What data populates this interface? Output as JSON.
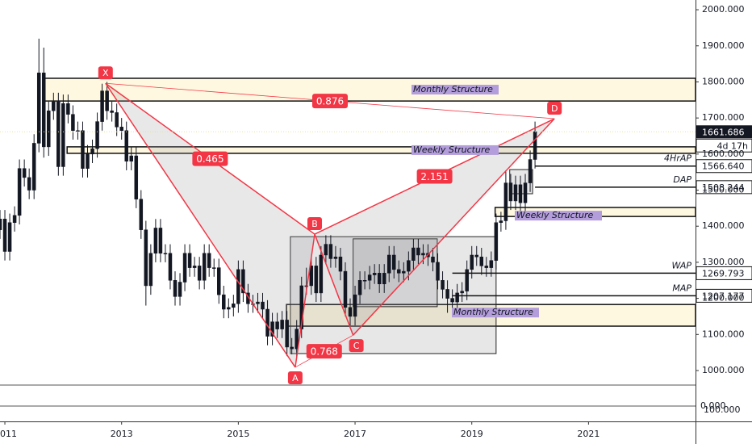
{
  "chart_data": {
    "type": "candlestick",
    "xlim": [
      0,
      143
    ],
    "xticks": [
      {
        "value": 1,
        "label": "011"
      },
      {
        "value": 25,
        "label": "2013"
      },
      {
        "value": 49,
        "label": "2015"
      },
      {
        "value": 73,
        "label": "2017"
      },
      {
        "value": 97,
        "label": "2019"
      },
      {
        "value": 121,
        "label": "2021"
      }
    ],
    "ylim": [
      859,
      2027
    ],
    "yticks": [
      {
        "value": 1000,
        "label": "1000.000"
      },
      {
        "value": 1100,
        "label": "1100.000"
      },
      {
        "value": 1200,
        "label": "1200.000"
      },
      {
        "value": 1300,
        "label": "1300.000"
      },
      {
        "value": 1400,
        "label": "1400.000"
      },
      {
        "value": 1500,
        "label": "1500.000"
      },
      {
        "value": 1600,
        "label": "1600.000"
      },
      {
        "value": 1700,
        "label": "1700.000"
      },
      {
        "value": 1800,
        "label": "1800.000"
      },
      {
        "value": 1900,
        "label": "1900.000"
      },
      {
        "value": 2000,
        "label": "2000.000"
      }
    ],
    "extra_scale_labels": [
      "0.000",
      "100.000"
    ],
    "color": "#131722",
    "x": [
      0,
      1,
      2,
      3,
      4,
      5,
      6,
      7,
      8,
      9,
      10,
      11,
      12,
      13,
      14,
      15,
      16,
      17,
      18,
      19,
      20,
      21,
      22,
      23,
      24,
      25,
      26,
      27,
      28,
      29,
      30,
      31,
      32,
      33,
      34,
      35,
      36,
      37,
      38,
      39,
      40,
      41,
      42,
      43,
      44,
      45,
      46,
      47,
      48,
      49,
      50,
      51,
      52,
      53,
      54,
      55,
      56,
      57,
      58,
      59,
      60,
      61,
      62,
      63,
      64,
      65,
      66,
      67,
      68,
      69,
      70,
      71,
      72,
      73,
      74,
      75,
      76,
      77,
      78,
      79,
      80,
      81,
      82,
      83,
      84,
      85,
      86,
      87,
      88,
      89,
      90,
      91,
      92,
      93,
      94,
      95,
      96,
      97,
      98,
      99,
      100,
      101,
      102,
      103,
      104,
      105,
      106,
      107,
      108,
      109,
      110
    ],
    "open": [
      1390,
      1420,
      1330,
      1410,
      1430,
      1560,
      1535,
      1500,
      1630,
      1825,
      1620,
      1720,
      1745,
      1565,
      1740,
      1710,
      1665,
      1665,
      1560,
      1600,
      1615,
      1690,
      1775,
      1720,
      1715,
      1675,
      1665,
      1580,
      1595,
      1475,
      1390,
      1235,
      1325,
      1395,
      1325,
      1325,
      1250,
      1205,
      1245,
      1325,
      1285,
      1290,
      1250,
      1325,
      1285,
      1285,
      1210,
      1170,
      1175,
      1185,
      1280,
      1215,
      1185,
      1185,
      1190,
      1170,
      1095,
      1135,
      1115,
      1140,
      1065,
      1060,
      1115,
      1235,
      1235,
      1290,
      1215,
      1320,
      1350,
      1310,
      1315,
      1275,
      1175,
      1150,
      1210,
      1250,
      1250,
      1265,
      1270,
      1240,
      1270,
      1320,
      1280,
      1270,
      1275,
      1305,
      1340,
      1320,
      1325,
      1315,
      1300,
      1250,
      1225,
      1200,
      1190,
      1215,
      1220,
      1280,
      1320,
      1315,
      1290,
      1285,
      1305,
      1410,
      1415,
      1520,
      1470,
      1515,
      1465,
      1520,
      1585
    ],
    "high": [
      1445,
      1445,
      1435,
      1455,
      1585,
      1585,
      1560,
      1655,
      1920,
      1895,
      1745,
      1770,
      1770,
      1765,
      1765,
      1735,
      1690,
      1690,
      1625,
      1640,
      1715,
      1795,
      1800,
      1745,
      1740,
      1700,
      1690,
      1620,
      1620,
      1500,
      1415,
      1350,
      1420,
      1420,
      1350,
      1350,
      1275,
      1270,
      1350,
      1350,
      1315,
      1315,
      1350,
      1350,
      1310,
      1310,
      1235,
      1200,
      1210,
      1305,
      1305,
      1240,
      1210,
      1215,
      1215,
      1195,
      1160,
      1160,
      1165,
      1165,
      1090,
      1140,
      1260,
      1285,
      1315,
      1315,
      1345,
      1375,
      1375,
      1345,
      1340,
      1300,
      1200,
      1235,
      1275,
      1275,
      1290,
      1295,
      1295,
      1295,
      1345,
      1345,
      1305,
      1300,
      1330,
      1365,
      1365,
      1350,
      1350,
      1340,
      1325,
      1275,
      1250,
      1225,
      1240,
      1245,
      1305,
      1345,
      1345,
      1340,
      1315,
      1330,
      1435,
      1440,
      1555,
      1545,
      1540,
      1540,
      1545,
      1610,
      1690
    ],
    "low": [
      1365,
      1305,
      1305,
      1385,
      1405,
      1510,
      1475,
      1475,
      1605,
      1590,
      1595,
      1695,
      1540,
      1540,
      1685,
      1640,
      1640,
      1535,
      1535,
      1575,
      1590,
      1665,
      1695,
      1690,
      1650,
      1640,
      1555,
      1555,
      1450,
      1365,
      1180,
      1210,
      1300,
      1300,
      1300,
      1225,
      1180,
      1180,
      1220,
      1260,
      1260,
      1225,
      1225,
      1260,
      1260,
      1185,
      1145,
      1145,
      1150,
      1160,
      1190,
      1160,
      1160,
      1160,
      1145,
      1070,
      1070,
      1090,
      1090,
      1040,
      1045,
      1035,
      1090,
      1210,
      1210,
      1190,
      1190,
      1295,
      1285,
      1285,
      1250,
      1150,
      1125,
      1125,
      1185,
      1225,
      1225,
      1240,
      1215,
      1215,
      1245,
      1255,
      1245,
      1245,
      1250,
      1280,
      1295,
      1295,
      1290,
      1275,
      1225,
      1200,
      1160,
      1165,
      1165,
      1190,
      1195,
      1255,
      1290,
      1265,
      1260,
      1260,
      1280,
      1385,
      1390,
      1445,
      1445,
      1440,
      1440,
      1495,
      1560
    ],
    "close": [
      1420,
      1330,
      1410,
      1430,
      1560,
      1535,
      1500,
      1630,
      1825,
      1620,
      1720,
      1745,
      1565,
      1740,
      1710,
      1665,
      1665,
      1560,
      1600,
      1615,
      1690,
      1775,
      1720,
      1715,
      1675,
      1665,
      1580,
      1595,
      1475,
      1390,
      1235,
      1325,
      1395,
      1325,
      1325,
      1250,
      1205,
      1245,
      1325,
      1285,
      1290,
      1250,
      1325,
      1285,
      1285,
      1210,
      1170,
      1175,
      1185,
      1280,
      1215,
      1185,
      1185,
      1190,
      1170,
      1095,
      1135,
      1115,
      1140,
      1065,
      1060,
      1115,
      1235,
      1235,
      1290,
      1215,
      1320,
      1350,
      1310,
      1315,
      1275,
      1175,
      1150,
      1210,
      1250,
      1250,
      1265,
      1270,
      1240,
      1270,
      1320,
      1280,
      1270,
      1275,
      1305,
      1340,
      1320,
      1325,
      1315,
      1300,
      1250,
      1225,
      1200,
      1190,
      1215,
      1220,
      1280,
      1320,
      1315,
      1290,
      1285,
      1305,
      1410,
      1415,
      1520,
      1470,
      1515,
      1465,
      1520,
      1585,
      1662
    ],
    "last_price": {
      "value": 1661.686,
      "label": "1661.686",
      "countdown": "4d 17h"
    },
    "levels": [
      {
        "name": "4HrAP",
        "value": 1566.64,
        "label": "1566.640",
        "from": 110
      },
      {
        "name": "DAP",
        "value": 1508.244,
        "label": "1508.244",
        "from": 110
      },
      {
        "name": "WAP",
        "value": 1269.793,
        "label": "1269.793",
        "from": 93
      },
      {
        "name": "MAP",
        "value": 1207.177,
        "label": "1207.177",
        "from": 93
      }
    ],
    "zones": [
      {
        "label": "Monthly Structure",
        "top": 1810,
        "bottom": 1747,
        "from": 8.8
      },
      {
        "label": "Weekly Structure",
        "top": 1620,
        "bottom": 1602,
        "from": 13.8
      },
      {
        "label": "Weekly Structure",
        "top": 1452,
        "bottom": 1427,
        "from": 101.8
      },
      {
        "label": "Monthly Structure",
        "top": 1183,
        "bottom": 1123,
        "from": 58.9
      }
    ],
    "boxes": [
      {
        "x": [
          59.7,
          102
        ],
        "y": [
          1047,
          1371
        ]
      },
      {
        "x": [
          72.6,
          89.9
        ],
        "y": [
          1177,
          1365
        ]
      },
      {
        "x": [
          104.8,
          109.5
        ],
        "y": [
          1490,
          1557
        ]
      }
    ],
    "pattern": {
      "points": [
        {
          "label": "X",
          "x": 21.7,
          "y": 1796
        },
        {
          "label": "A",
          "x": 60.7,
          "y": 1009
        },
        {
          "label": "B",
          "x": 64.7,
          "y": 1378
        },
        {
          "label": "C",
          "x": 72.6,
          "y": 1098
        },
        {
          "label": "D",
          "x": 114,
          "y": 1698
        }
      ],
      "ratios": [
        "0.876",
        "0.465",
        "2.151",
        "0.768"
      ]
    }
  }
}
